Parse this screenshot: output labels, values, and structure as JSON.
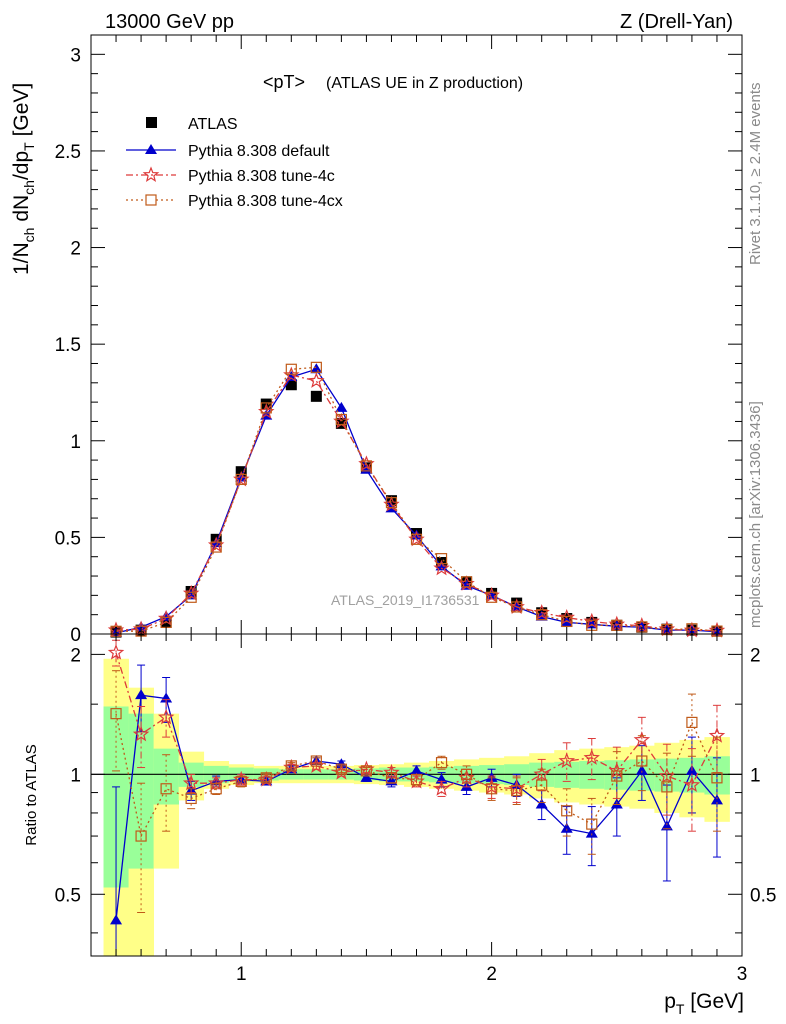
{
  "header": {
    "left": "13000 GeV pp",
    "right": "Z (Drell-Yan)"
  },
  "side_labels": {
    "rivet": "Rivet 3.1.10, ≥ 2.4M events",
    "mcplots": "mcplots.cern.ch [arXiv:1306.3436]"
  },
  "legend": {
    "atlas": "ATLAS",
    "default": "Pythia 8.308 default",
    "tune4c": "Pythia 8.308 tune-4c",
    "tune4cx": "Pythia 8.308 tune-4cx"
  },
  "colors": {
    "atlas": "#000000",
    "default": "#0000cc",
    "tune4c": "#dd3b3b",
    "tune4cx": "#c05a19",
    "band_inner": "#99ff99",
    "band_outer": "#ffff88"
  },
  "chart_data": [
    {
      "type": "scatter",
      "title_main": "<pT>",
      "title_sub": "(ATLAS UE in Z production)",
      "watermark": "ATLAS_2019_I1736531",
      "ylabel": "1/N_ch dN_ch/dp_T [GeV]",
      "xlim": [
        0.4,
        3.0
      ],
      "ylim": [
        0,
        3.1
      ],
      "yticks": [
        0,
        0.5,
        1,
        1.5,
        2,
        2.5,
        3
      ],
      "ytick_labels": [
        "0",
        "0.5",
        "1",
        "1.5",
        "2",
        "2.5",
        "3"
      ],
      "x": [
        0.5,
        0.6,
        0.7,
        0.8,
        0.9,
        1.0,
        1.1,
        1.2,
        1.3,
        1.4,
        1.5,
        1.6,
        1.7,
        1.8,
        1.9,
        2.0,
        2.1,
        2.2,
        2.3,
        2.4,
        2.5,
        2.6,
        2.7,
        2.8,
        2.9
      ],
      "series": [
        {
          "name": "ATLAS",
          "values": [
            0.01,
            0.02,
            0.06,
            0.22,
            0.49,
            0.84,
            1.19,
            1.29,
            1.23,
            1.09,
            0.86,
            0.69,
            0.52,
            0.37,
            0.27,
            0.21,
            0.16,
            0.11,
            0.08,
            0.06,
            0.045,
            0.035,
            0.025,
            0.02,
            0.015
          ]
        },
        {
          "name": "Pythia 8.308 default",
          "values": [
            0.005,
            0.035,
            0.09,
            0.2,
            0.47,
            0.81,
            1.13,
            1.33,
            1.37,
            1.17,
            0.85,
            0.65,
            0.51,
            0.35,
            0.25,
            0.2,
            0.14,
            0.09,
            0.06,
            0.05,
            0.04,
            0.035,
            0.02,
            0.02,
            0.012
          ]
        },
        {
          "name": "Pythia 8.308 tune-4c",
          "values": [
            0.02,
            0.025,
            0.08,
            0.21,
            0.46,
            0.8,
            1.15,
            1.34,
            1.31,
            1.1,
            0.88,
            0.67,
            0.49,
            0.34,
            0.26,
            0.2,
            0.14,
            0.11,
            0.085,
            0.065,
            0.05,
            0.043,
            0.025,
            0.019,
            0.018
          ]
        },
        {
          "name": "Pythia 8.308 tune-4cx",
          "values": [
            0.014,
            0.015,
            0.06,
            0.19,
            0.45,
            0.8,
            1.17,
            1.37,
            1.38,
            1.11,
            0.87,
            0.68,
            0.49,
            0.39,
            0.27,
            0.19,
            0.14,
            0.1,
            0.065,
            0.045,
            0.045,
            0.037,
            0.023,
            0.027,
            0.015
          ]
        }
      ]
    },
    {
      "type": "scatter",
      "ylabel": "Ratio to ATLAS",
      "xlabel": "p_T [GeV]",
      "xlim": [
        0.4,
        3.0
      ],
      "ylim": [
        0.35,
        2.25
      ],
      "xticks": [
        1,
        2,
        3
      ],
      "xtick_labels": [
        "1",
        "2",
        "3"
      ],
      "yticks": [
        0.5,
        1,
        2
      ],
      "ytick_labels": [
        "0.5",
        "1",
        "2"
      ],
      "x": [
        0.5,
        0.6,
        0.7,
        0.8,
        0.9,
        1.0,
        1.1,
        1.2,
        1.3,
        1.4,
        1.5,
        1.6,
        1.7,
        1.8,
        1.9,
        2.0,
        2.1,
        2.2,
        2.3,
        2.4,
        2.5,
        2.6,
        2.7,
        2.8,
        2.9
      ],
      "band_inner": [
        0.48,
        0.42,
        0.16,
        0.07,
        0.05,
        0.04,
        0.035,
        0.03,
        0.03,
        0.03,
        0.035,
        0.04,
        0.04,
        0.045,
        0.05,
        0.055,
        0.06,
        0.07,
        0.075,
        0.08,
        0.085,
        0.09,
        0.095,
        0.1,
        0.11
      ],
      "band_outer": [
        0.95,
        0.65,
        0.42,
        0.14,
        0.08,
        0.06,
        0.05,
        0.05,
        0.05,
        0.05,
        0.055,
        0.06,
        0.07,
        0.08,
        0.09,
        0.1,
        0.11,
        0.13,
        0.15,
        0.16,
        0.17,
        0.18,
        0.2,
        0.22,
        0.24
      ],
      "series": [
        {
          "name": "Pythia 8.308 default",
          "values": [
            0.43,
            1.58,
            1.55,
            0.91,
            0.96,
            0.97,
            0.96,
            1.03,
            1.08,
            1.06,
            0.98,
            0.96,
            1.02,
            0.97,
            0.93,
            0.98,
            0.94,
            0.84,
            0.73,
            0.71,
            0.84,
            1.02,
            0.74,
            1.02,
            0.86
          ],
          "err": [
            0.5,
            0.3,
            0.2,
            0.05,
            0.03,
            0.03,
            0.02,
            0.02,
            0.02,
            0.02,
            0.02,
            0.03,
            0.03,
            0.04,
            0.04,
            0.05,
            0.06,
            0.07,
            0.1,
            0.12,
            0.14,
            0.16,
            0.2,
            0.22,
            0.24
          ]
        },
        {
          "name": "Pythia 8.308 tune-4c",
          "values": [
            2.02,
            1.26,
            1.39,
            0.95,
            0.95,
            0.97,
            0.97,
            1.04,
            1.05,
            1.01,
            1.03,
            1.01,
            0.96,
            0.92,
            0.98,
            0.93,
            0.92,
            1.0,
            1.08,
            1.1,
            1.02,
            1.22,
            0.99,
            0.94,
            1.25
          ],
          "err": [
            0.15,
            0.22,
            0.15,
            0.05,
            0.03,
            0.03,
            0.02,
            0.02,
            0.02,
            0.02,
            0.02,
            0.03,
            0.03,
            0.04,
            0.05,
            0.06,
            0.07,
            0.09,
            0.12,
            0.13,
            0.15,
            0.17,
            0.2,
            0.22,
            0.24
          ]
        },
        {
          "name": "Pythia 8.308 tune-4cx",
          "values": [
            1.42,
            0.7,
            0.92,
            0.87,
            0.92,
            0.96,
            0.98,
            1.05,
            1.08,
            1.03,
            1.02,
            0.98,
            0.97,
            1.07,
            1.0,
            0.92,
            0.91,
            0.94,
            0.81,
            0.75,
            0.99,
            1.08,
            0.93,
            1.35,
            0.98
          ],
          "err": [
            0.4,
            0.25,
            0.2,
            0.05,
            0.03,
            0.03,
            0.02,
            0.02,
            0.02,
            0.02,
            0.02,
            0.03,
            0.03,
            0.04,
            0.05,
            0.06,
            0.07,
            0.09,
            0.11,
            0.12,
            0.15,
            0.17,
            0.2,
            0.24,
            0.26
          ]
        }
      ]
    }
  ]
}
